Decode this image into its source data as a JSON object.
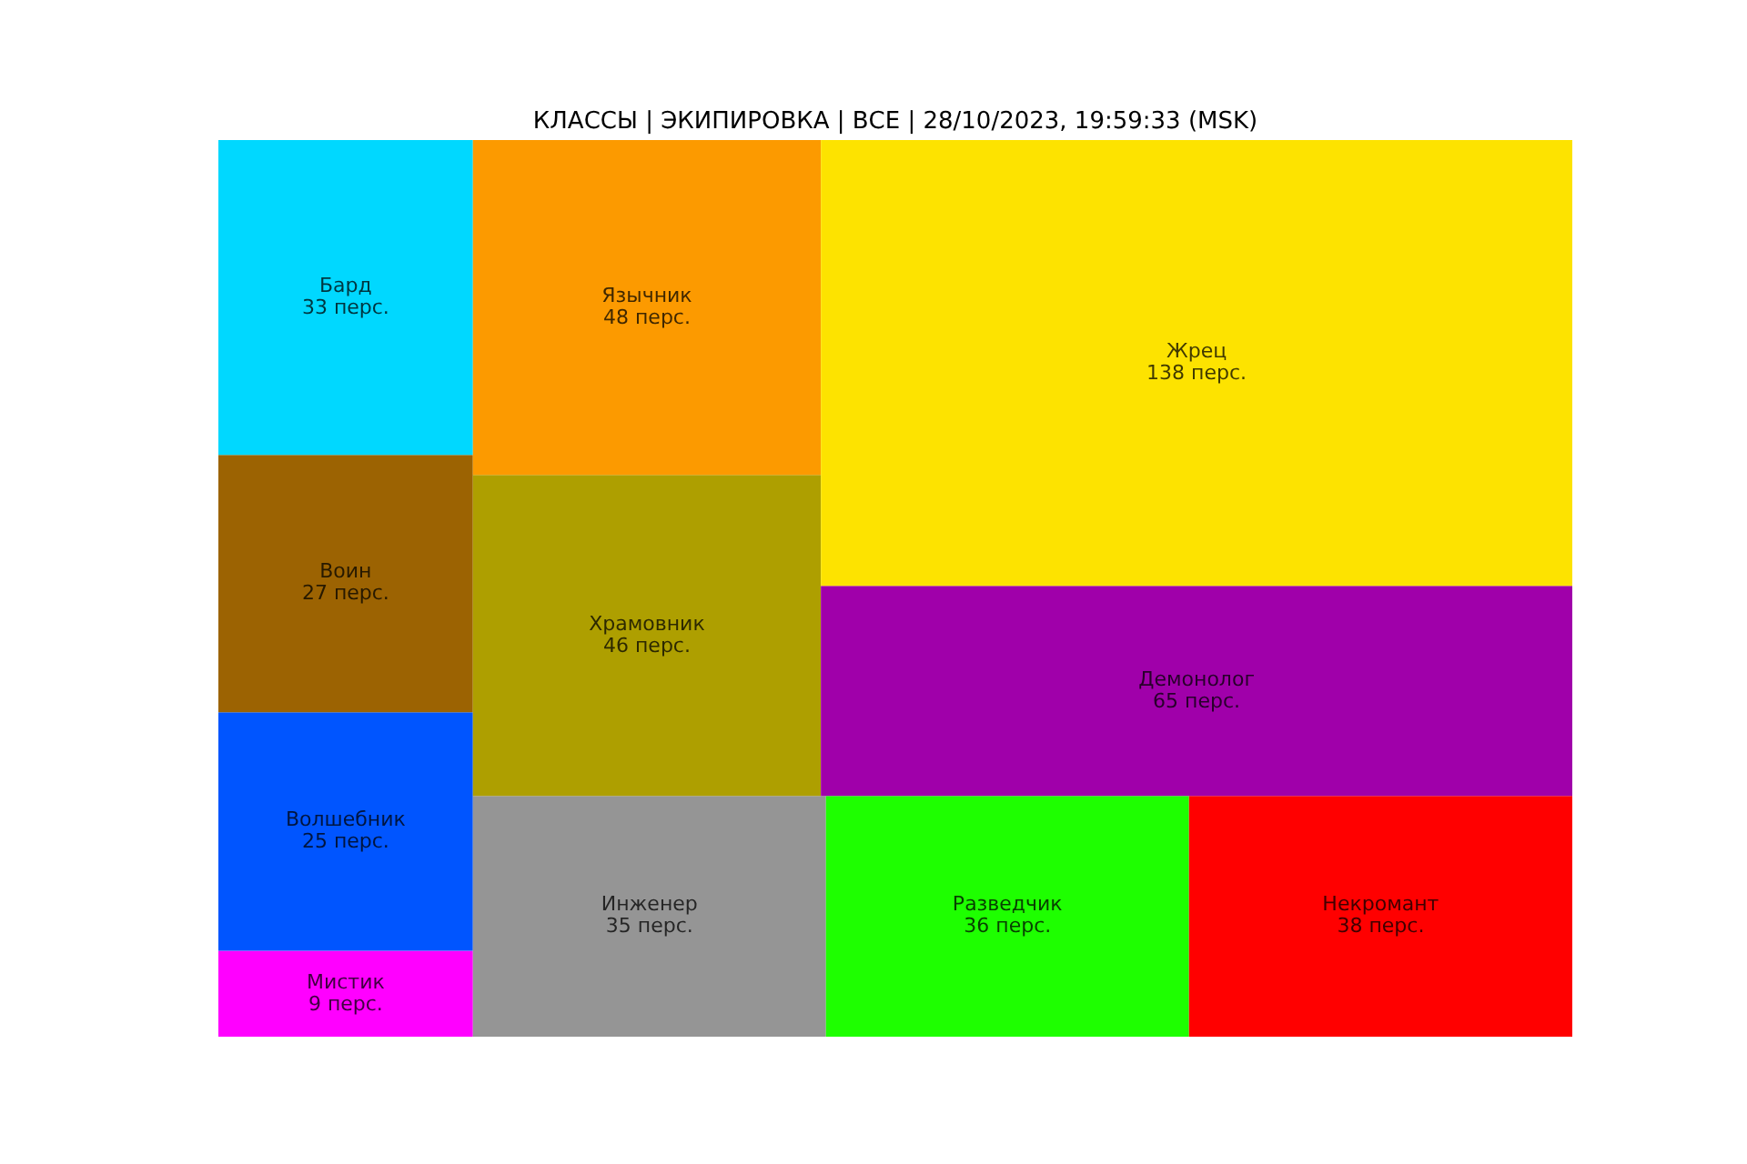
{
  "chart_data": {
    "type": "other",
    "title": "КЛАССЫ | ЭКИПИРОВКА | ВСЕ | 28/10/2023, 19:59:33 (MSK)",
    "categories": [
      "Мистик",
      "Волшебник",
      "Воин",
      "Бард",
      "Инженер",
      "Разведчик",
      "Некромант",
      "Храмовник",
      "Язычник",
      "Демонолог",
      "Жрец"
    ],
    "values": [
      9,
      25,
      27,
      33,
      35,
      36,
      38,
      46,
      48,
      65,
      138
    ],
    "value_labels": [
      "9 перс.",
      "25 перс.",
      "27 перс.",
      "33 перс.",
      "35 перс.",
      "36 перс.",
      "38 перс.",
      "46 перс.",
      "48 перс.",
      "65 перс.",
      "138 перс."
    ],
    "colors": [
      "#ff00ff",
      "#0055ff",
      "#9c6302",
      "#00d8ff",
      "#959595",
      "#1eff00",
      "#ff0000",
      "#ae9f00",
      "#fc9a00",
      "#a000aa",
      "#fde300"
    ]
  }
}
